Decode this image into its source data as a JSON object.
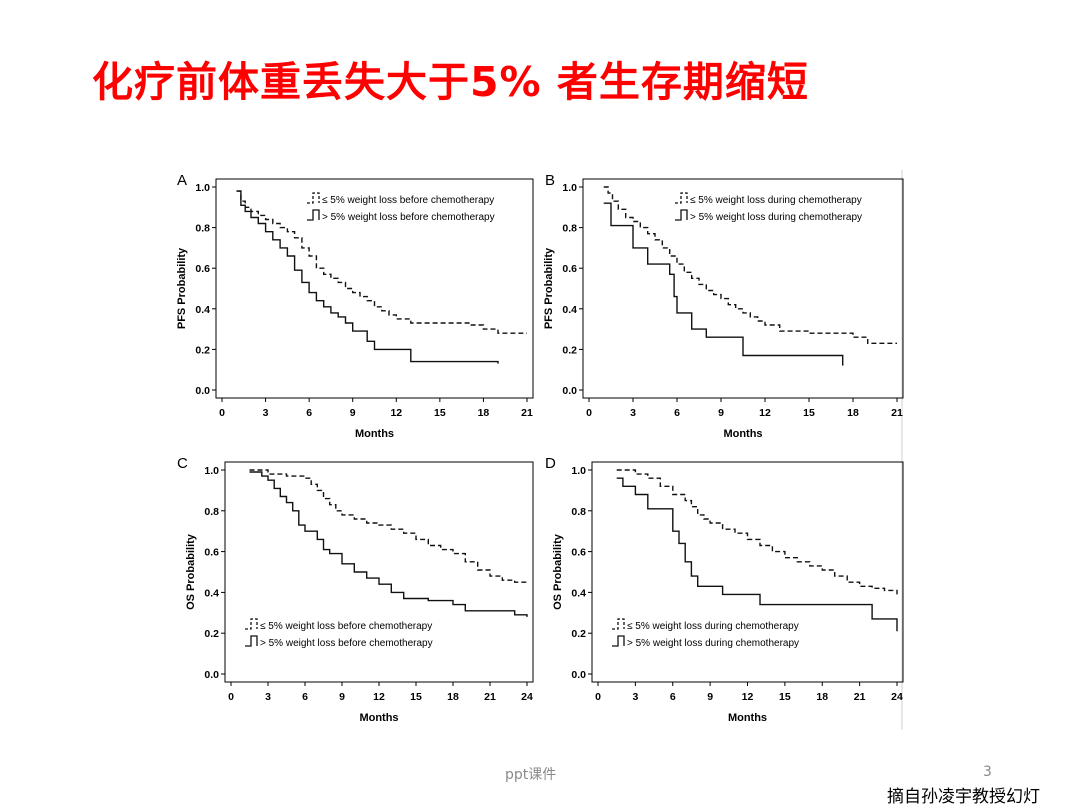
{
  "slide": {
    "title": "化疗前体重丢失大于5% 者生存期缩短",
    "footer_left": "ppt课件",
    "page_number": "3",
    "credit": "摘自孙凌宇教授幻灯",
    "title_color": "#ff0000"
  },
  "chart_data": [
    {
      "type": "line",
      "step": true,
      "panel": "A",
      "ylabel": "PFS Probability",
      "xlabel": "Months",
      "xlim": [
        0,
        21
      ],
      "ylim": [
        0,
        1
      ],
      "xticks": [
        "0",
        "3",
        "6",
        "9",
        "12",
        "15",
        "18",
        "21"
      ],
      "yticks": [
        "0.0",
        "0.2",
        "0.4",
        "0.6",
        "0.8",
        "1.0"
      ],
      "legend_position": "top-right",
      "series": [
        {
          "name": "≤ 5% weight loss before chemotherapy",
          "style": "dashed",
          "x": [
            1.0,
            1.3,
            1.6,
            2.0,
            2.5,
            3.0,
            3.5,
            4.0,
            4.5,
            5.0,
            5.5,
            6.0,
            6.5,
            7.0,
            7.5,
            8.0,
            8.5,
            9.0,
            9.5,
            10.0,
            10.5,
            11.0,
            11.5,
            12.0,
            13.0,
            15.0,
            17.0,
            18.0,
            19.0,
            21.0
          ],
          "y": [
            0.98,
            0.93,
            0.9,
            0.88,
            0.86,
            0.84,
            0.82,
            0.8,
            0.78,
            0.75,
            0.7,
            0.66,
            0.6,
            0.57,
            0.55,
            0.53,
            0.5,
            0.48,
            0.46,
            0.44,
            0.41,
            0.39,
            0.37,
            0.35,
            0.33,
            0.33,
            0.32,
            0.3,
            0.28,
            0.28
          ]
        },
        {
          "name": "> 5% weight loss before chemotherapy",
          "style": "solid",
          "x": [
            1.0,
            1.3,
            1.6,
            2.0,
            2.5,
            3.0,
            3.5,
            4.0,
            4.5,
            5.0,
            5.5,
            6.0,
            6.5,
            7.0,
            7.5,
            8.0,
            8.5,
            9.0,
            10.0,
            10.5,
            12.0,
            13.0,
            16.0,
            19.0
          ],
          "y": [
            0.98,
            0.91,
            0.88,
            0.85,
            0.82,
            0.78,
            0.74,
            0.7,
            0.66,
            0.59,
            0.53,
            0.48,
            0.44,
            0.41,
            0.38,
            0.36,
            0.33,
            0.29,
            0.24,
            0.2,
            0.2,
            0.14,
            0.14,
            0.13
          ]
        }
      ]
    },
    {
      "type": "line",
      "step": true,
      "panel": "B",
      "ylabel": "PFS Probability",
      "xlabel": "Months",
      "xlim": [
        0,
        21
      ],
      "ylim": [
        0,
        1
      ],
      "xticks": [
        "0",
        "3",
        "6",
        "9",
        "12",
        "15",
        "18",
        "21"
      ],
      "yticks": [
        "0.0",
        "0.2",
        "0.4",
        "0.6",
        "0.8",
        "1.0"
      ],
      "legend_position": "top-right",
      "series": [
        {
          "name": "≤ 5% weight loss during chemotherapy",
          "style": "dashed",
          "x": [
            1.0,
            1.3,
            1.6,
            2.0,
            2.5,
            3.0,
            3.5,
            4.0,
            4.5,
            5.0,
            5.5,
            6.0,
            6.5,
            7.0,
            7.5,
            8.0,
            8.5,
            9.0,
            9.5,
            10.0,
            10.5,
            11.0,
            11.5,
            12.0,
            13.0,
            15.0,
            17.0,
            18.0,
            19.0,
            21.0
          ],
          "y": [
            1.0,
            0.97,
            0.93,
            0.89,
            0.85,
            0.83,
            0.8,
            0.77,
            0.74,
            0.7,
            0.66,
            0.62,
            0.58,
            0.55,
            0.52,
            0.49,
            0.47,
            0.45,
            0.42,
            0.4,
            0.38,
            0.36,
            0.34,
            0.32,
            0.29,
            0.28,
            0.28,
            0.26,
            0.23,
            0.23
          ]
        },
        {
          "name": "> 5% weight loss during chemotherapy",
          "style": "solid",
          "x": [
            1.0,
            1.5,
            3.0,
            4.0,
            5.5,
            5.8,
            6.0,
            7.0,
            8.0,
            10.5,
            12.0,
            17.3
          ],
          "y": [
            0.92,
            0.81,
            0.7,
            0.62,
            0.57,
            0.46,
            0.38,
            0.3,
            0.26,
            0.17,
            0.17,
            0.12
          ]
        }
      ]
    },
    {
      "type": "line",
      "step": true,
      "panel": "C",
      "ylabel": "OS Probability",
      "xlabel": "Months",
      "xlim": [
        0,
        24
      ],
      "ylim": [
        0,
        1
      ],
      "xticks": [
        "0",
        "3",
        "6",
        "9",
        "12",
        "15",
        "18",
        "21",
        "24"
      ],
      "yticks": [
        "0.0",
        "0.2",
        "0.4",
        "0.6",
        "0.8",
        "1.0"
      ],
      "legend_position": "bottom-left",
      "series": [
        {
          "name": "≤ 5% weight loss before chemotherapy",
          "style": "dashed",
          "x": [
            1.5,
            3.0,
            4.5,
            6.0,
            6.5,
            7.0,
            7.5,
            8.0,
            8.5,
            9.0,
            10.0,
            11.0,
            12.0,
            13.0,
            14.0,
            15.0,
            16.0,
            17.0,
            18.0,
            19.0,
            20.0,
            21.0,
            22.0,
            23.0,
            24.0
          ],
          "y": [
            1.0,
            0.98,
            0.97,
            0.96,
            0.93,
            0.9,
            0.86,
            0.83,
            0.8,
            0.78,
            0.76,
            0.74,
            0.73,
            0.71,
            0.69,
            0.66,
            0.63,
            0.61,
            0.59,
            0.55,
            0.51,
            0.48,
            0.46,
            0.45,
            0.44
          ]
        },
        {
          "name": "> 5% weight loss before chemotherapy",
          "style": "solid",
          "x": [
            1.5,
            2.5,
            3.0,
            3.5,
            4.0,
            4.5,
            5.0,
            5.5,
            6.0,
            7.0,
            7.5,
            8.0,
            9.0,
            10.0,
            11.0,
            12.0,
            13.0,
            14.0,
            16.0,
            18.0,
            19.0,
            23.0,
            24.0
          ],
          "y": [
            0.99,
            0.97,
            0.95,
            0.91,
            0.87,
            0.84,
            0.8,
            0.73,
            0.7,
            0.66,
            0.61,
            0.59,
            0.54,
            0.5,
            0.47,
            0.44,
            0.4,
            0.37,
            0.36,
            0.34,
            0.31,
            0.29,
            0.28
          ]
        }
      ]
    },
    {
      "type": "line",
      "step": true,
      "panel": "D",
      "ylabel": "OS Probability",
      "xlabel": "Months",
      "xlim": [
        0,
        24
      ],
      "ylim": [
        0,
        1
      ],
      "xticks": [
        "0",
        "3",
        "6",
        "9",
        "12",
        "15",
        "18",
        "21",
        "24"
      ],
      "yticks": [
        "0.0",
        "0.2",
        "0.4",
        "0.6",
        "0.8",
        "1.0"
      ],
      "legend_position": "bottom-left",
      "series": [
        {
          "name": "≤ 5% weight loss during chemotherapy",
          "style": "dashed",
          "x": [
            1.5,
            3.0,
            4.0,
            5.0,
            6.0,
            7.0,
            7.5,
            8.0,
            8.5,
            9.0,
            10.0,
            11.0,
            12.0,
            13.0,
            14.0,
            15.0,
            16.0,
            17.0,
            18.0,
            19.0,
            20.0,
            21.0,
            22.0,
            23.0,
            24.0
          ],
          "y": [
            1.0,
            0.98,
            0.96,
            0.92,
            0.88,
            0.85,
            0.82,
            0.78,
            0.76,
            0.74,
            0.71,
            0.69,
            0.66,
            0.63,
            0.6,
            0.57,
            0.55,
            0.53,
            0.51,
            0.48,
            0.45,
            0.43,
            0.42,
            0.41,
            0.39
          ]
        },
        {
          "name": "> 5% weight loss during chemotherapy",
          "style": "solid",
          "x": [
            1.5,
            2.0,
            3.0,
            4.0,
            6.0,
            6.5,
            7.0,
            7.5,
            8.0,
            10.0,
            11.0,
            13.0,
            16.0,
            22.0,
            24.0
          ],
          "y": [
            0.96,
            0.92,
            0.88,
            0.81,
            0.7,
            0.64,
            0.55,
            0.48,
            0.43,
            0.39,
            0.39,
            0.34,
            0.34,
            0.27,
            0.21
          ]
        }
      ]
    }
  ]
}
